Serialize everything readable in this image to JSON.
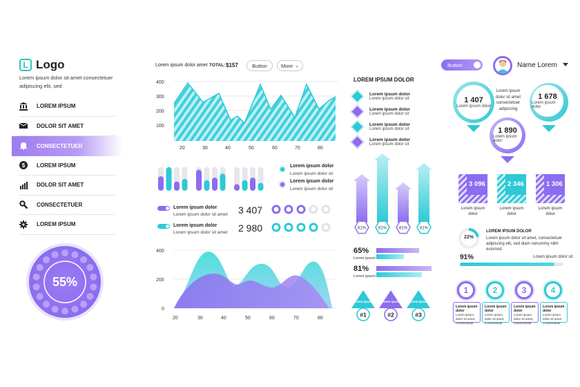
{
  "brand": {
    "logo_letter": "L",
    "name": "Logo",
    "tagline": "Lorem ipsum dolor sit amet consectetuer adipiscing elit, sed"
  },
  "nav": [
    {
      "label": "LOREM IPSUM",
      "icon": "bank-icon",
      "active": false
    },
    {
      "label": "DOLOR SIT AMET",
      "icon": "mail-icon",
      "active": false
    },
    {
      "label": "CONSECTETUER",
      "icon": "bell-icon",
      "active": true
    },
    {
      "label": "LOREM IPSUM",
      "icon": "dollar-icon",
      "active": false
    },
    {
      "label": "DOLOR SIT AMET",
      "icon": "bar-chart-icon",
      "active": false
    },
    {
      "label": "CONSECTETUER",
      "icon": "search-icon",
      "active": false
    },
    {
      "label": "LOREM IPSUM",
      "icon": "gear-icon",
      "active": false
    }
  ],
  "gauge": {
    "value": "55%"
  },
  "toolbar": {
    "label": "Lorem ipsum dolor amet",
    "total_label": "TOTAL:",
    "total_value": "$157",
    "button_label": "Button",
    "more_label": "More"
  },
  "chart_top": {
    "y_ticks": [
      "400",
      "300",
      "200",
      "100"
    ],
    "x_ticks": [
      "20",
      "30",
      "40",
      "50",
      "60",
      "70",
      "80"
    ]
  },
  "mini_bars_legend": [
    {
      "title": "Lorem ipsum dolor",
      "sub": "Lorem ipsum dolor sit",
      "color": "#2ec9d6"
    },
    {
      "title": "Lorem ipsum dolor",
      "sub": "Lorem ipsum dolor sit",
      "color": "#8c6cf0"
    }
  ],
  "stat_rows": [
    {
      "title": "Lorem ipsum dolor",
      "sub": "Lorem ipsum dolor sit amet",
      "value": "3 407",
      "color": "#8c6cf0"
    },
    {
      "title": "Lorem ipsum dolor",
      "sub": "Lorem ipsum dolor sit amet",
      "value": "2 980",
      "color": "#2ec9d6"
    }
  ],
  "chart_bottom": {
    "y_ticks": [
      "400",
      "200",
      "0"
    ],
    "x_ticks": [
      "20",
      "30",
      "40",
      "50",
      "60",
      "70",
      "80"
    ]
  },
  "section": {
    "title": "LOREM IPSUM DOLOR"
  },
  "diamond_items": [
    {
      "title": "Lorem ipsum dolor",
      "sub": "Lorem ipsum dolor sit",
      "color": "#2ec9d6"
    },
    {
      "title": "Lorem ipsum dolor",
      "sub": "Lorem ipsum dolor sit",
      "color": "#8c6cf0"
    },
    {
      "title": "Lorem ipsum dolor",
      "sub": "Lorem ipsum dolor sit",
      "color": "#2ec9d6"
    },
    {
      "title": "Lorem ipsum dolor",
      "sub": "Lorem ipsum dolor sit",
      "color": "#8c6cf0"
    }
  ],
  "arrows": [
    {
      "label": "81%",
      "color": "#9a7cf0"
    },
    {
      "label": "81%",
      "color": "#2ec9d6"
    },
    {
      "label": "81%",
      "color": "#9a7cf0"
    },
    {
      "label": "81%",
      "color": "#2ec9d6"
    }
  ],
  "hbars": [
    {
      "value": "65%",
      "sub": "Lorem ipsum",
      "fill": 0.65
    },
    {
      "value": "81%",
      "sub": "Lorem ipsum",
      "fill": 0.81
    }
  ],
  "ranks": [
    {
      "title": "Lorem ipsum",
      "num": "#1"
    },
    {
      "title": "Lorem ipsum",
      "num": "#2"
    },
    {
      "title": "Lorem ipsum",
      "num": "#3"
    }
  ],
  "header_right": {
    "toggle_label": "Button",
    "user_name": "Name Lorem"
  },
  "circle_stats": [
    {
      "value": "1 407",
      "label": "Lorem ipsum dolor"
    },
    {
      "value": "1 678",
      "label": "Lorem ipsum dolor"
    },
    {
      "value": "1 890",
      "label": "Lorem ipsum dolor"
    }
  ],
  "circle_note": "Lorem ipsum dolor sit amet consectetuer adipiscing",
  "squares": [
    {
      "value": "3 096",
      "label": "Lorem ipsum dolor"
    },
    {
      "value": "2 346",
      "label": "Lorem ipsum dolor"
    },
    {
      "value": "1 306",
      "label": "Lorem ipsum dolor"
    }
  ],
  "donut": {
    "value": "22%",
    "fraction": 0.22,
    "title": "LOREM IPSUM DOLOR",
    "text": "Lorem ipsum dolor sit amet, consectetuer adipiscing elit, sed diam nonummy nibh euismod"
  },
  "progress": {
    "value": "91%",
    "fraction": 0.91,
    "label": "Lorem ipsum dolor sit"
  },
  "numbered": [
    {
      "num": "1",
      "title": "Lorem ipsum dolor",
      "text": "Lorem ipsum dolor sit amet, consectetuer",
      "color": "#8c6cf0"
    },
    {
      "num": "2",
      "title": "Lorem ipsum dolor",
      "text": "Lorem ipsum dolor sit amet, consectetuer",
      "color": "#2ec9d6"
    },
    {
      "num": "3",
      "title": "Lorem ipsum dolor",
      "text": "Lorem ipsum dolor sit amet, consectetuer",
      "color": "#8c6cf0"
    },
    {
      "num": "4",
      "title": "Lorem ipsum dolor",
      "text": "Lorem ipsum dolor sit amet, consectetuer",
      "color": "#2ec9d6"
    }
  ],
  "colors": {
    "cyan": "#2ec9d6",
    "purple": "#8c6cf0",
    "light_purple": "#b8a4f5",
    "grey": "#d9d9df"
  }
}
